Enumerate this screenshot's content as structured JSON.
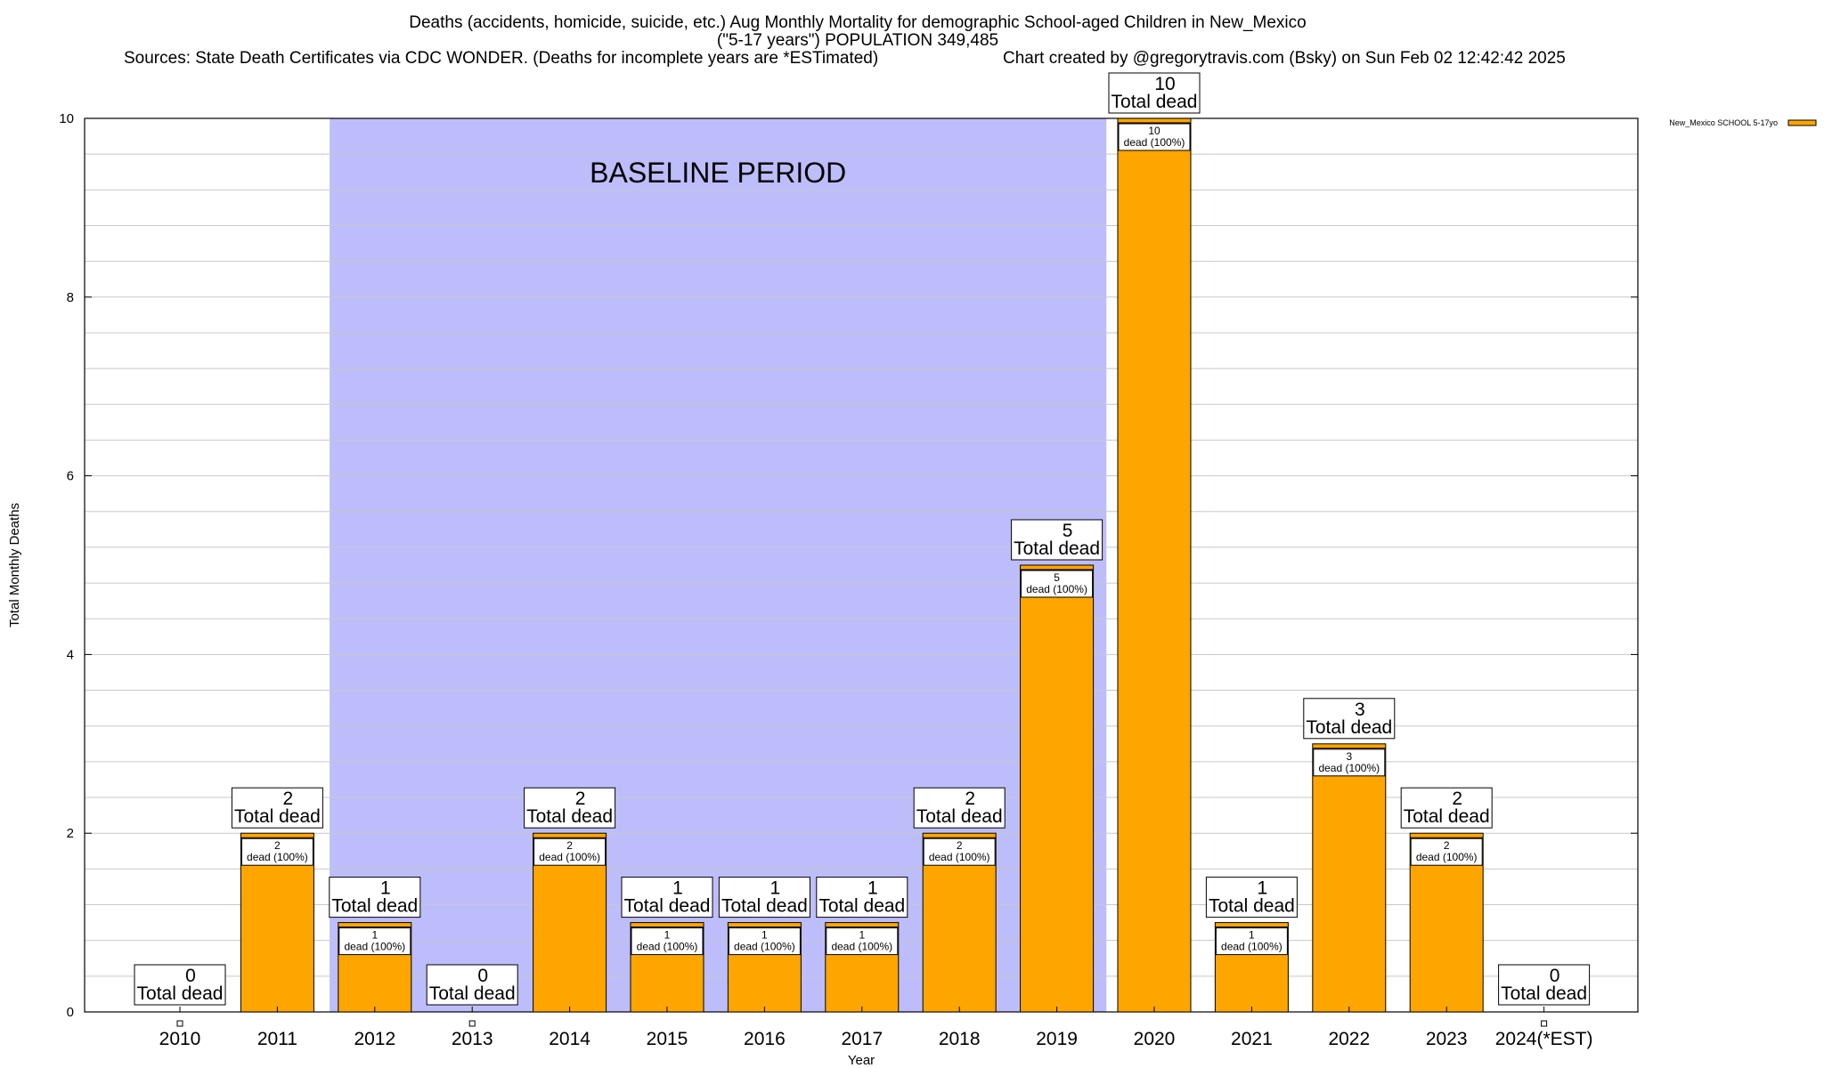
{
  "title": {
    "line1": "Deaths (accidents, homicide, suicide, etc.) Aug Monthly Mortality for demographic School-aged Children in New_Mexico",
    "line2": "(\"5-17 years\") POPULATION 349,485",
    "sources": "Sources: State Death Certificates via CDC WONDER. (Deaths for incomplete years are *ESTimated)",
    "credit": "Chart created by @gregorytravis.com (Bsky) on Sun Feb 02 12:42:42 2025"
  },
  "chart_data": {
    "type": "bar",
    "xlabel": "Year",
    "ylabel": "Total Monthly Deaths",
    "ylim": [
      0,
      10
    ],
    "yticks": [
      0,
      2,
      4,
      6,
      8,
      10
    ],
    "grid": true,
    "legend_position": "top-right",
    "categories": [
      "2010",
      "2011",
      "2012",
      "2013",
      "2014",
      "2015",
      "2016",
      "2017",
      "2018",
      "2019",
      "2020",
      "2021",
      "2022",
      "2023",
      "2024(*EST)"
    ],
    "series": [
      {
        "name": "New_Mexico SCHOOL 5-17yo",
        "color": "#FFA500",
        "values": [
          0,
          2,
          1,
          0,
          2,
          1,
          1,
          1,
          2,
          5,
          10,
          1,
          3,
          2,
          0
        ]
      }
    ],
    "total_label": "Total dead",
    "segment_label": "dead (100%)",
    "baseline": {
      "label": "BASELINE PERIOD",
      "from": "2012",
      "to": "2019",
      "color": "#BDBDFB"
    }
  }
}
